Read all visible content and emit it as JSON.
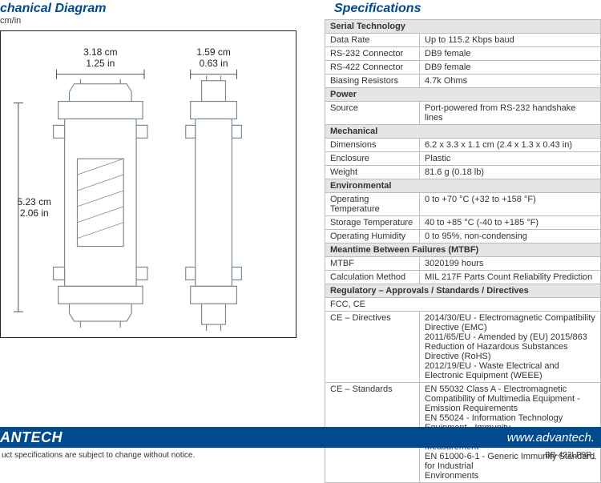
{
  "diagram": {
    "title": "chanical Diagram",
    "sub": "cm/in",
    "top_dim_cm": "3.18 cm",
    "top_dim_in": "1.25 in",
    "top_dim2_cm": "1.59 cm",
    "top_dim2_in": "0.63 in",
    "side_dim_cm": "5.23 cm",
    "side_dim_in": "2.06 in",
    "outline_color": "#7a8a94",
    "line_color": "#222222"
  },
  "spec": {
    "title": "Specifications",
    "sections": [
      {
        "header": "Serial Technology",
        "rows": [
          {
            "label": "Data Rate",
            "value": "Up to 115.2 Kbps baud"
          },
          {
            "label": "RS-232 Connector",
            "value": "DB9 female"
          },
          {
            "label": "RS-422 Connector",
            "value": "DB9 female"
          },
          {
            "label": "Biasing Resistors",
            "value": "4.7k Ohms"
          }
        ]
      },
      {
        "header": "Power",
        "rows": [
          {
            "label": "Source",
            "value": "Port-powered from RS-232 handshake lines"
          }
        ]
      },
      {
        "header": "Mechanical",
        "rows": [
          {
            "label": "Dimensions",
            "value": "6.2 x 3.3 x 1.1 cm (2.4 x 1.3 x 0.43 in)"
          },
          {
            "label": "Enclosure",
            "value": "Plastic"
          },
          {
            "label": "Weight",
            "value": "81.6 g  (0.18 lb)"
          }
        ]
      },
      {
        "header": "Environmental",
        "rows": [
          {
            "label": "Operating Temperature",
            "value": "0 to +70 °C (+32 to +158 °F)"
          },
          {
            "label": "Storage Temperature",
            "value": "40 to +85 °C (-40 to +185 °F)"
          },
          {
            "label": "Operating Humidity",
            "value": "0 to 95%, non-condensing"
          }
        ]
      },
      {
        "header": "Meantime Between Failures (MTBF)",
        "rows": [
          {
            "label": "MTBF",
            "value": "3020199 hours"
          },
          {
            "label": "Calculation Method",
            "value": "MIL 217F Parts Count Reliability Prediction"
          }
        ]
      },
      {
        "header": "Regulatory – Approvals / Standards / Directives",
        "full": "FCC, CE",
        "rows": [
          {
            "label": "CE – Directives",
            "value": "2014/30/EU - Electromagnetic Compatibility Directive (EMC)\n2011/65/EU - Amended by (EU) 2015/863 Reduction of Hazardous Substances Directive (RoHS)\n2012/19/EU - Waste Electrical and Electronic Equipment (WEEE)"
          },
          {
            "label": "CE – Standards",
            "value": "EN 55032 Class A - Electromagnetic Compatibility of Multimedia Equipment - Emission Requirements\nEN 55024 - Information Technology Equipment - Immunity\n          Characteristics - Limits and Methods  of Measurement\nEN 61000-6-1 - Generic Immunity Standard for Industrial\n          Environments"
          }
        ]
      }
    ]
  },
  "footer": {
    "logo": "ANTECH",
    "url": "www.advantech.",
    "note_left": "uct specifications are subject to change without notice.",
    "note_right": "BB-422LP9R_"
  },
  "colors": {
    "brand": "#004a8f",
    "section_bg": "#e5e5e5",
    "border": "#bcbcbc"
  }
}
